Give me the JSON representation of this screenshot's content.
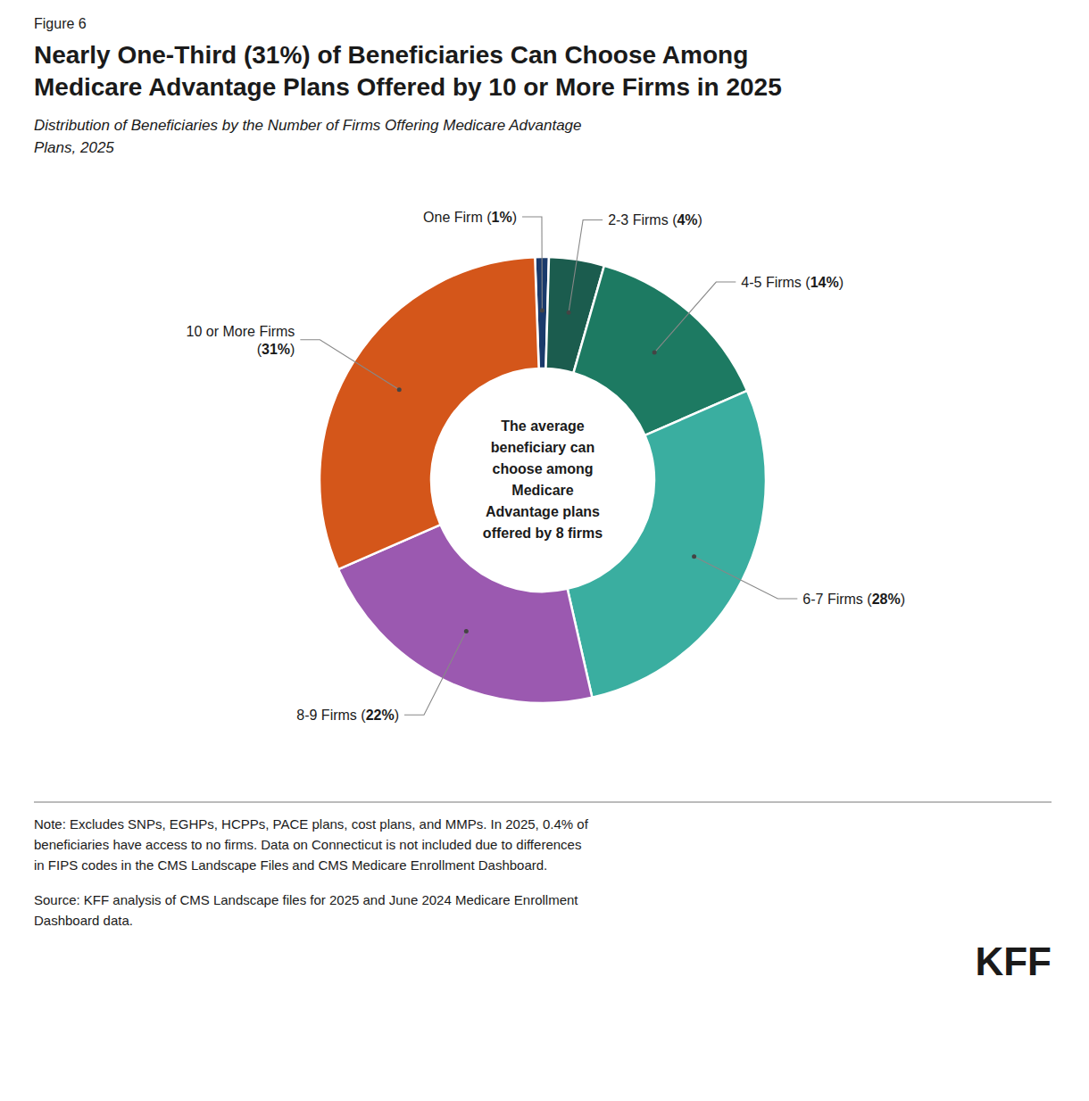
{
  "chart_data": {
    "type": "pie",
    "figure_label": "Figure 6",
    "title": "Nearly One-Third (31%) of Beneficiaries Can Choose Among\nMedicare Advantage Plans Offered by 10 or More Firms in 2025",
    "subtitle": "Distribution of Beneficiaries by the Number of Firms Offering Medicare Advantage\nPlans, 2025",
    "center_text": "The average\nbeneficiary can\nchoose among\nMedicare\nAdvantage plans\noffered by 8 firms",
    "categories": [
      "One Firm",
      "2-3 Firms",
      "4-5 Firms",
      "6-7 Firms",
      "8-9 Firms",
      "10 or More Firms"
    ],
    "values": [
      1,
      4,
      14,
      28,
      22,
      31
    ],
    "colors": [
      "#1a3a6b",
      "#1b5c4e",
      "#1d7a62",
      "#3aaea0",
      "#9b59b0",
      "#d4561a"
    ],
    "value_labels": [
      "One Firm (1%)",
      "2-3 Firms (4%)",
      "4-5 Firms (14%)",
      "6-7 Firms (28%)",
      "8-9 Firms (22%)",
      "10 or More Firms\n(31%)"
    ],
    "data_labels": true,
    "note": "Note: Excludes SNPs, EGHPs, HCPPs, PACE plans, cost plans, and MMPs. In 2025, 0.4% of\nbeneficiaries have access to no firms. Data on Connecticut is not included due to differences\nin FIPS codes in the CMS Landscape Files and CMS Medicare Enrollment Dashboard.",
    "source": "Source: KFF analysis of CMS Landscape files for 2025 and June 2024 Medicare Enrollment\nDashboard data.",
    "logo": "KFF"
  }
}
